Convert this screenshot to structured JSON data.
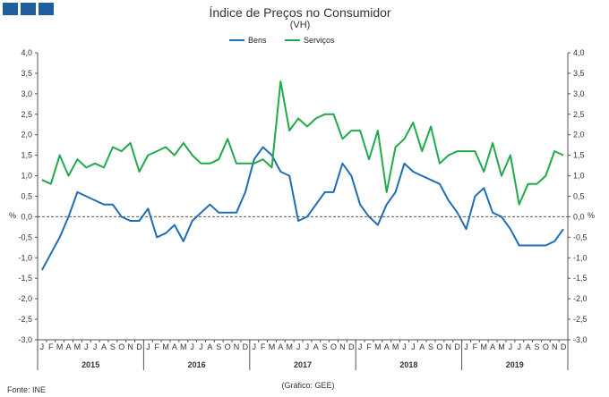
{
  "source": "Fonte: INE",
  "credit": "(Gráfico: GEE)",
  "chart_data": {
    "type": "line",
    "title": "Índice de Preços no Consumidor",
    "subtitle": "(VH)",
    "ylabel_left": "%",
    "ylabel_right": "%",
    "ylim": [
      -3.0,
      4.0
    ],
    "yticks": [
      "4,0",
      "3,5",
      "3,0",
      "2,5",
      "2,0",
      "1,5",
      "1,0",
      "0,5",
      "0,0",
      "-0,5",
      "-1,0",
      "-1,5",
      "-2,0",
      "-2,5",
      "-3,0"
    ],
    "years": [
      "2015",
      "2016",
      "2017",
      "2018",
      "2019"
    ],
    "month_letters": [
      "J",
      "F",
      "M",
      "A",
      "M",
      "J",
      "J",
      "A",
      "S",
      "O",
      "N",
      "D"
    ],
    "legend_position": "top-center",
    "grid": false,
    "series": [
      {
        "name": "Bens",
        "color": "#1f6db5",
        "values": [
          -1.3,
          -0.9,
          -0.5,
          0.0,
          0.6,
          0.5,
          0.4,
          0.3,
          0.3,
          0.0,
          -0.1,
          -0.1,
          0.2,
          -0.5,
          -0.4,
          -0.2,
          -0.6,
          -0.1,
          0.1,
          0.3,
          0.1,
          0.1,
          0.1,
          0.6,
          1.4,
          1.7,
          1.5,
          1.1,
          1.0,
          -0.1,
          0.0,
          0.3,
          0.6,
          0.6,
          1.3,
          1.0,
          0.3,
          0.0,
          -0.2,
          0.3,
          0.6,
          1.3,
          1.1,
          1.0,
          0.9,
          0.8,
          0.4,
          0.1,
          -0.3,
          0.5,
          0.7,
          0.1,
          0.0,
          -0.3,
          -0.7,
          -0.7,
          -0.7,
          -0.7,
          -0.6,
          -0.3
        ]
      },
      {
        "name": "Serviços",
        "color": "#21a94b",
        "values": [
          0.9,
          0.8,
          1.5,
          1.0,
          1.4,
          1.2,
          1.3,
          1.2,
          1.7,
          1.6,
          1.8,
          1.1,
          1.5,
          1.6,
          1.7,
          1.5,
          1.8,
          1.5,
          1.3,
          1.3,
          1.4,
          1.9,
          1.3,
          1.3,
          1.3,
          1.4,
          1.2,
          3.3,
          2.1,
          2.4,
          2.2,
          2.4,
          2.5,
          2.5,
          1.9,
          2.1,
          2.1,
          1.4,
          2.1,
          0.6,
          1.7,
          1.9,
          2.3,
          1.6,
          2.2,
          1.3,
          1.5,
          1.6,
          1.6,
          1.6,
          1.1,
          1.8,
          1.0,
          1.5,
          0.3,
          0.8,
          0.8,
          1.0,
          1.6,
          1.5
        ]
      }
    ]
  }
}
